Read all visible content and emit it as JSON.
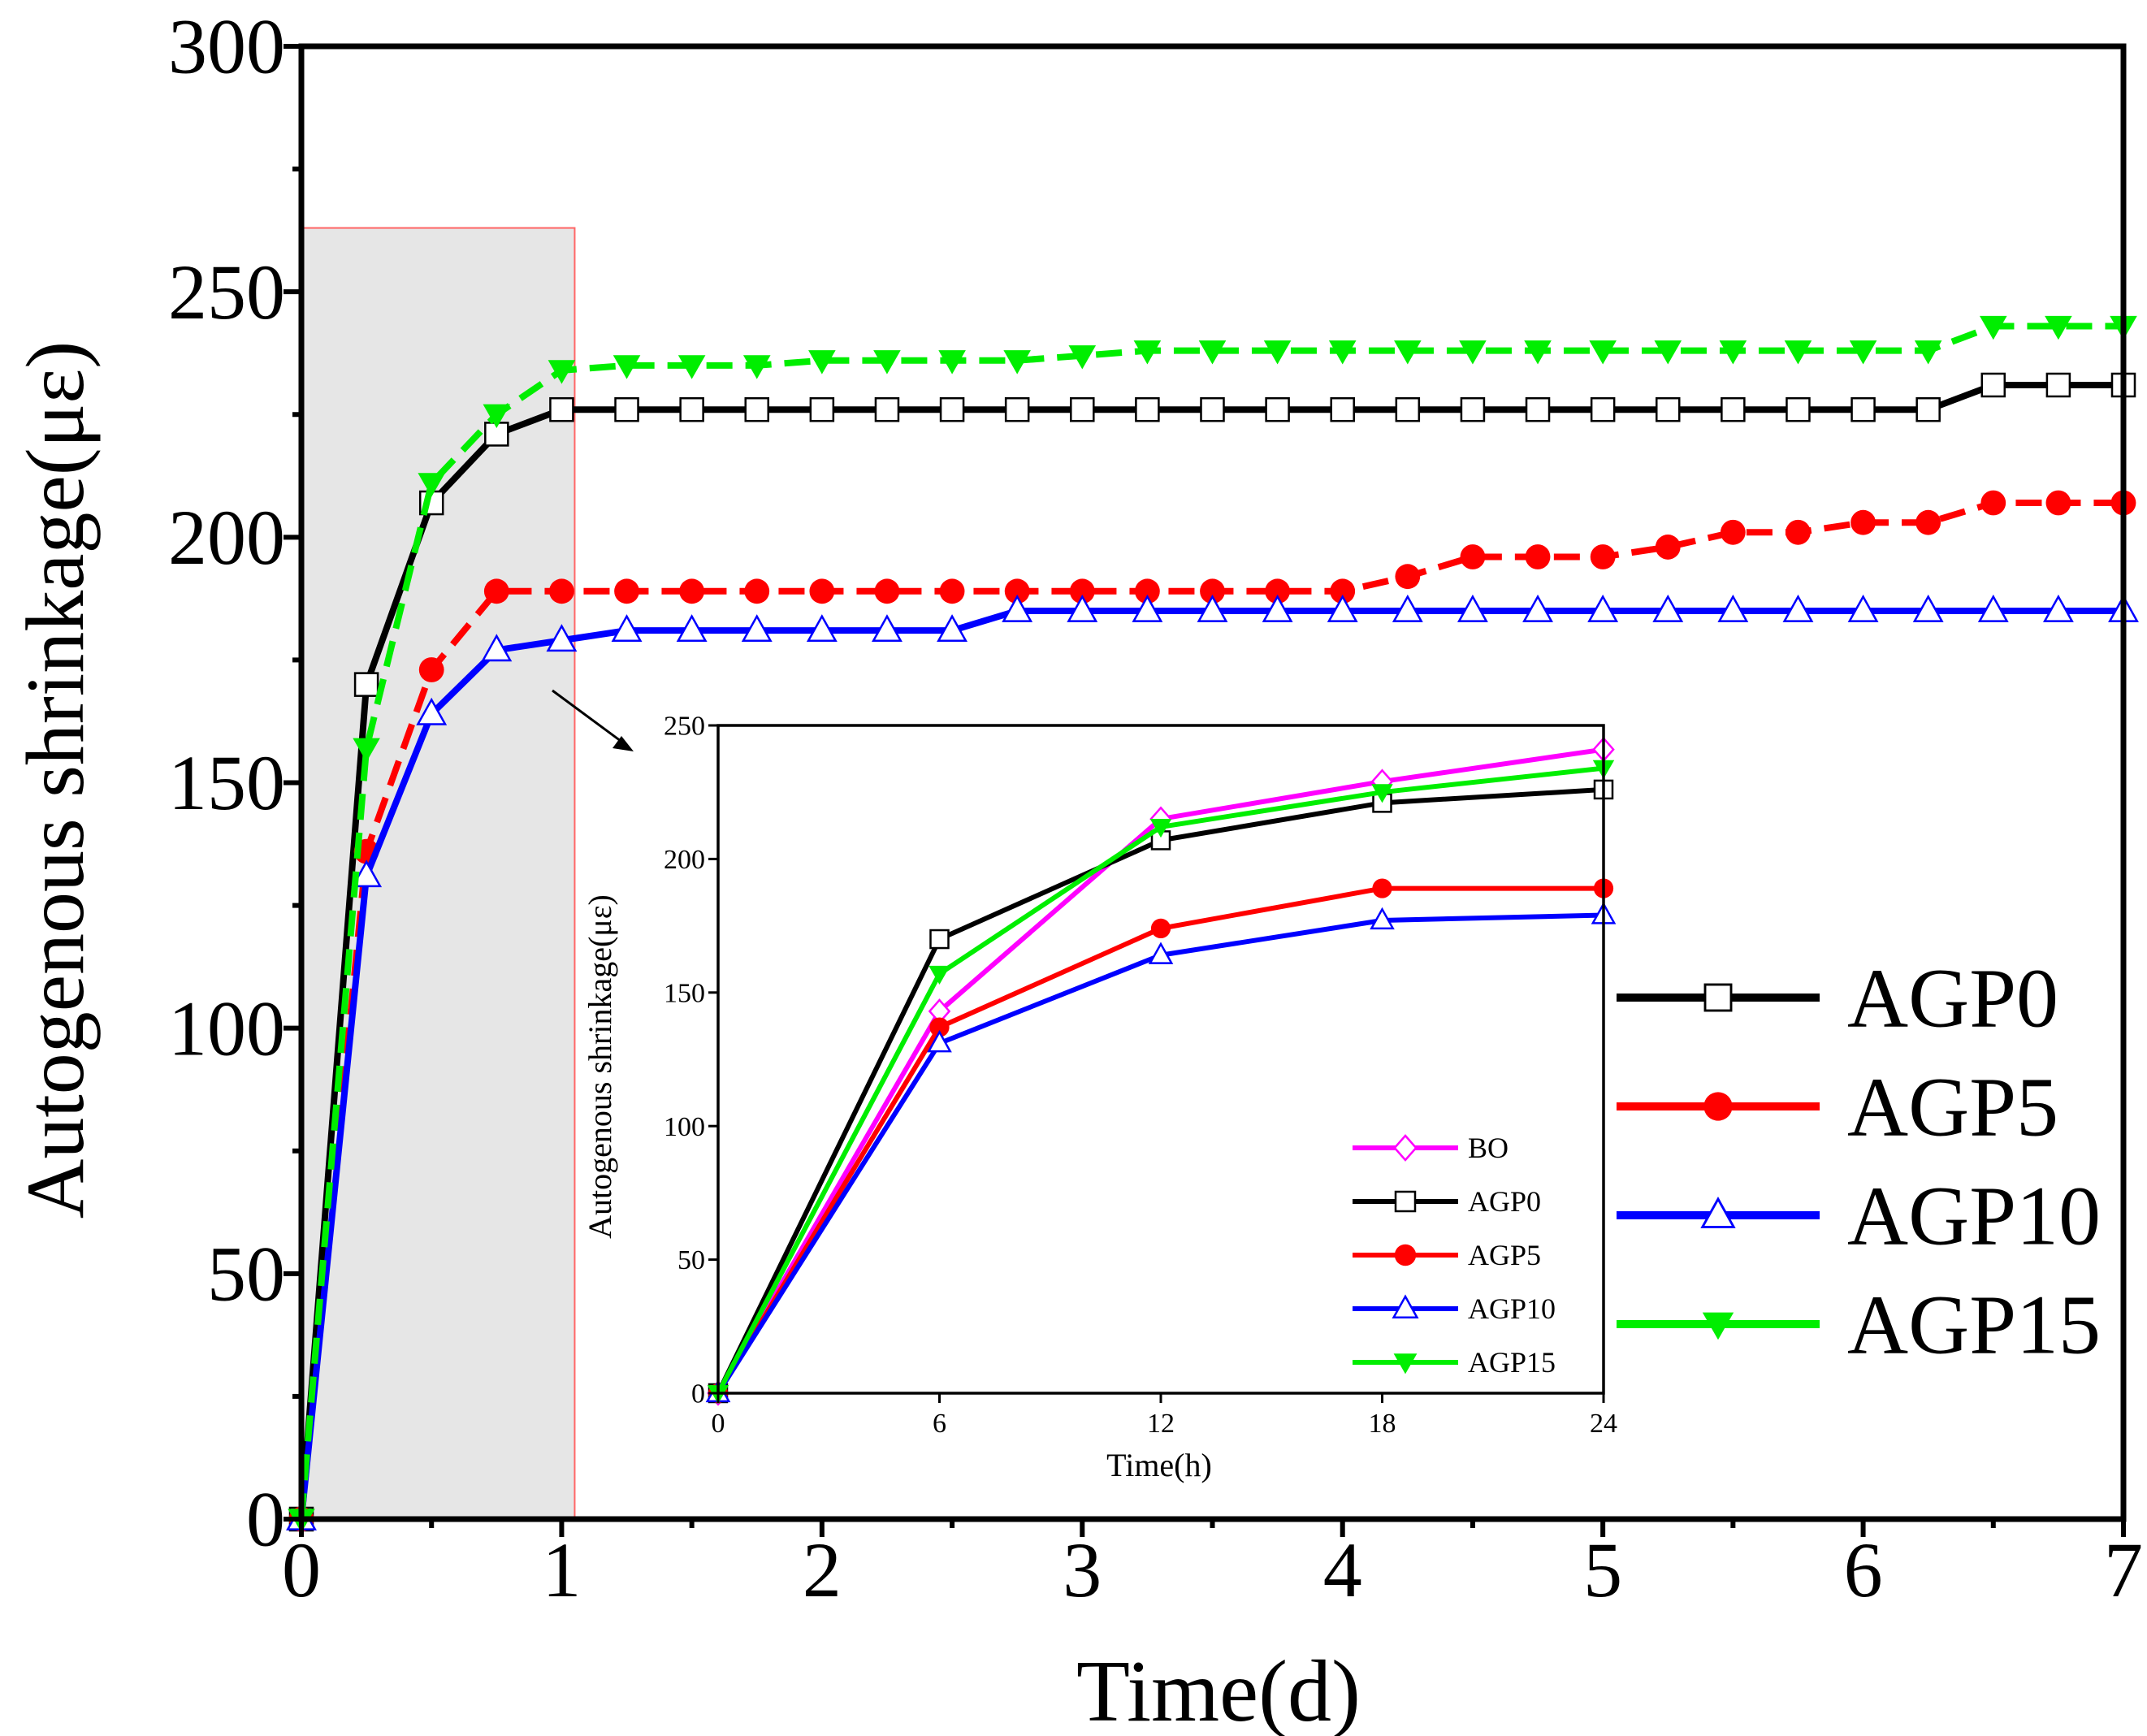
{
  "colors": {
    "AGP0": "#000000",
    "AGP5": "#ff0000",
    "AGP10": "#0000ff",
    "AGP15": "#00ee00",
    "BO": "#ff00ff",
    "highlight_fill": "#e6e6e6",
    "highlight_stroke": "#ff6666"
  },
  "chart_data": [
    {
      "type": "line",
      "id": "main",
      "xlabel": "Time(d)",
      "ylabel": "Autogenous shrinkage(με)",
      "xlim": [
        0,
        7
      ],
      "ylim": [
        0,
        300
      ],
      "xticks": [
        0,
        1,
        2,
        3,
        4,
        5,
        6,
        7
      ],
      "yticks": [
        0,
        50,
        100,
        150,
        200,
        250,
        300
      ],
      "highlight_x_range": [
        0,
        1.05
      ],
      "highlight_y_top": 263,
      "x": [
        0,
        0.25,
        0.5,
        0.75,
        1,
        1.25,
        1.5,
        1.75,
        2,
        2.25,
        2.5,
        2.75,
        3,
        3.25,
        3.5,
        3.75,
        4,
        4.25,
        4.5,
        4.75,
        5,
        5.25,
        5.5,
        5.75,
        6,
        6.25,
        6.5,
        6.75,
        7
      ],
      "series": [
        {
          "name": "AGP0",
          "marker": "square",
          "dashed": false,
          "values": [
            0,
            170,
            207,
            221,
            226,
            226,
            226,
            226,
            226,
            226,
            226,
            226,
            226,
            226,
            226,
            226,
            226,
            226,
            226,
            226,
            226,
            226,
            226,
            226,
            226,
            226,
            231,
            231,
            231
          ]
        },
        {
          "name": "AGP5",
          "marker": "circle",
          "dashed": true,
          "values": [
            0,
            136,
            173,
            189,
            189,
            189,
            189,
            189,
            189,
            189,
            189,
            189,
            189,
            189,
            189,
            189,
            189,
            192,
            196,
            196,
            196,
            198,
            201,
            201,
            203,
            203,
            207,
            207,
            207
          ]
        },
        {
          "name": "AGP10",
          "marker": "triangle-up",
          "dashed": false,
          "values": [
            0,
            131,
            164,
            177,
            179,
            181,
            181,
            181,
            181,
            181,
            181,
            185,
            185,
            185,
            185,
            185,
            185,
            185,
            185,
            185,
            185,
            185,
            185,
            185,
            185,
            185,
            185,
            185,
            185
          ]
        },
        {
          "name": "AGP15",
          "marker": "triangle-down",
          "dashed": true,
          "values": [
            0,
            157,
            211,
            225,
            234,
            235,
            235,
            235,
            236,
            236,
            236,
            236,
            237,
            238,
            238,
            238,
            238,
            238,
            238,
            238,
            238,
            238,
            238,
            238,
            238,
            238,
            243,
            243,
            243
          ]
        }
      ],
      "legend": [
        "AGP0",
        "AGP5",
        "AGP10",
        "AGP15"
      ],
      "legend_position": "right"
    },
    {
      "type": "line",
      "id": "inset",
      "xlabel": "Time(h)",
      "ylabel": "Autogenous shrinkage(με)",
      "xlim": [
        0,
        24
      ],
      "ylim": [
        0,
        250
      ],
      "xticks": [
        0,
        6,
        12,
        18,
        24
      ],
      "yticks": [
        0,
        50,
        100,
        150,
        200,
        250
      ],
      "x": [
        0,
        6,
        12,
        18,
        24
      ],
      "series": [
        {
          "name": "BO",
          "marker": "diamond",
          "values": [
            0,
            143,
            215,
            229,
            241
          ]
        },
        {
          "name": "AGP0",
          "marker": "square",
          "values": [
            0,
            170,
            207,
            221,
            226
          ]
        },
        {
          "name": "AGP5",
          "marker": "circle",
          "values": [
            0,
            137,
            174,
            189,
            189
          ]
        },
        {
          "name": "AGP10",
          "marker": "triangle-up",
          "values": [
            0,
            131,
            164,
            177,
            179
          ]
        },
        {
          "name": "AGP15",
          "marker": "triangle-down",
          "values": [
            0,
            157,
            212,
            225,
            234
          ]
        }
      ],
      "legend": [
        "BO",
        "AGP0",
        "AGP5",
        "AGP10",
        "AGP15"
      ],
      "legend_position": "bottom-right"
    }
  ]
}
